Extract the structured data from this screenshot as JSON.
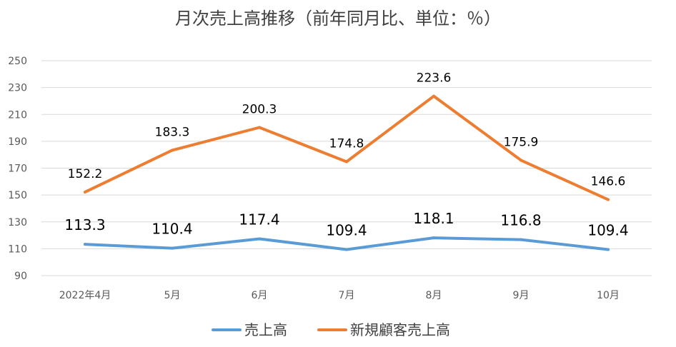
{
  "chart_data": {
    "type": "line",
    "title": "月次売上高推移（前年同月比、単位：％）",
    "xlabel": "",
    "ylabel": "",
    "categories": [
      "2022年4月",
      "5月",
      "6月",
      "7月",
      "8月",
      "9月",
      "10月"
    ],
    "ylim": [
      90,
      250
    ],
    "yticks": [
      90,
      110,
      130,
      150,
      170,
      190,
      210,
      230,
      250
    ],
    "grid": true,
    "legend": "bottom",
    "series": [
      {
        "name": "売上高",
        "color": "#5b9bd5",
        "values": [
          113.3,
          110.4,
          117.4,
          109.4,
          118.1,
          116.8,
          109.4
        ],
        "labels": [
          "113.3",
          "110.4",
          "117.4",
          "109.4",
          "118.1",
          "116.8",
          "109.4"
        ]
      },
      {
        "name": "新規顧客売上高",
        "color": "#ed7d31",
        "values": [
          152.2,
          183.3,
          200.3,
          174.8,
          223.6,
          175.9,
          146.6
        ],
        "labels": [
          "152.2",
          "183.3",
          "200.3",
          "174.8",
          "223.6",
          "175.9",
          "146.6"
        ]
      }
    ]
  }
}
